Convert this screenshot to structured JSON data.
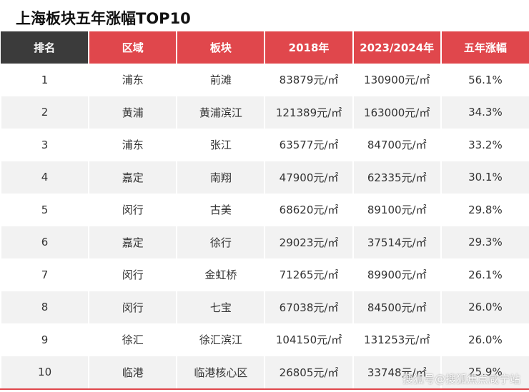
{
  "header": {
    "title": "上海板块五年涨幅TOP10"
  },
  "table": {
    "headers": [
      "排名",
      "区域",
      "板块",
      "2018年",
      "2023/2024年",
      "五年涨幅"
    ],
    "rows": [
      [
        "1",
        "浦东",
        "前滩",
        "83879元/㎡",
        "130900元/㎡",
        "56.1%"
      ],
      [
        "2",
        "黄浦",
        "黄浦滨江",
        "121389元/㎡",
        "163000元/㎡",
        "34.3%"
      ],
      [
        "3",
        "浦东",
        "张江",
        "63577元/㎡",
        "84700元/㎡",
        "33.2%"
      ],
      [
        "4",
        "嘉定",
        "南翔",
        "47900元/㎡",
        "62335元/㎡",
        "30.1%"
      ],
      [
        "5",
        "闵行",
        "古美",
        "68620元/㎡",
        "89100元/㎡",
        "29.8%"
      ],
      [
        "6",
        "嘉定",
        "徐行",
        "29023元/㎡",
        "37514元/㎡",
        "29.3%"
      ],
      [
        "7",
        "闵行",
        "金虹桥",
        "71265元/㎡",
        "89900元/㎡",
        "26.1%"
      ],
      [
        "8",
        "闵行",
        "七宝",
        "67038元/㎡",
        "84500元/㎡",
        "26.0%"
      ],
      [
        "9",
        "徐汇",
        "徐汇滨江",
        "104150元/㎡",
        "131253元/㎡",
        "26.0%"
      ],
      [
        "10",
        "临港",
        "临港核心区",
        "26805元/㎡",
        "33748元/㎡",
        "25.9%"
      ]
    ]
  },
  "watermark": "搜狐号@搜狐焦点咸宁站"
}
